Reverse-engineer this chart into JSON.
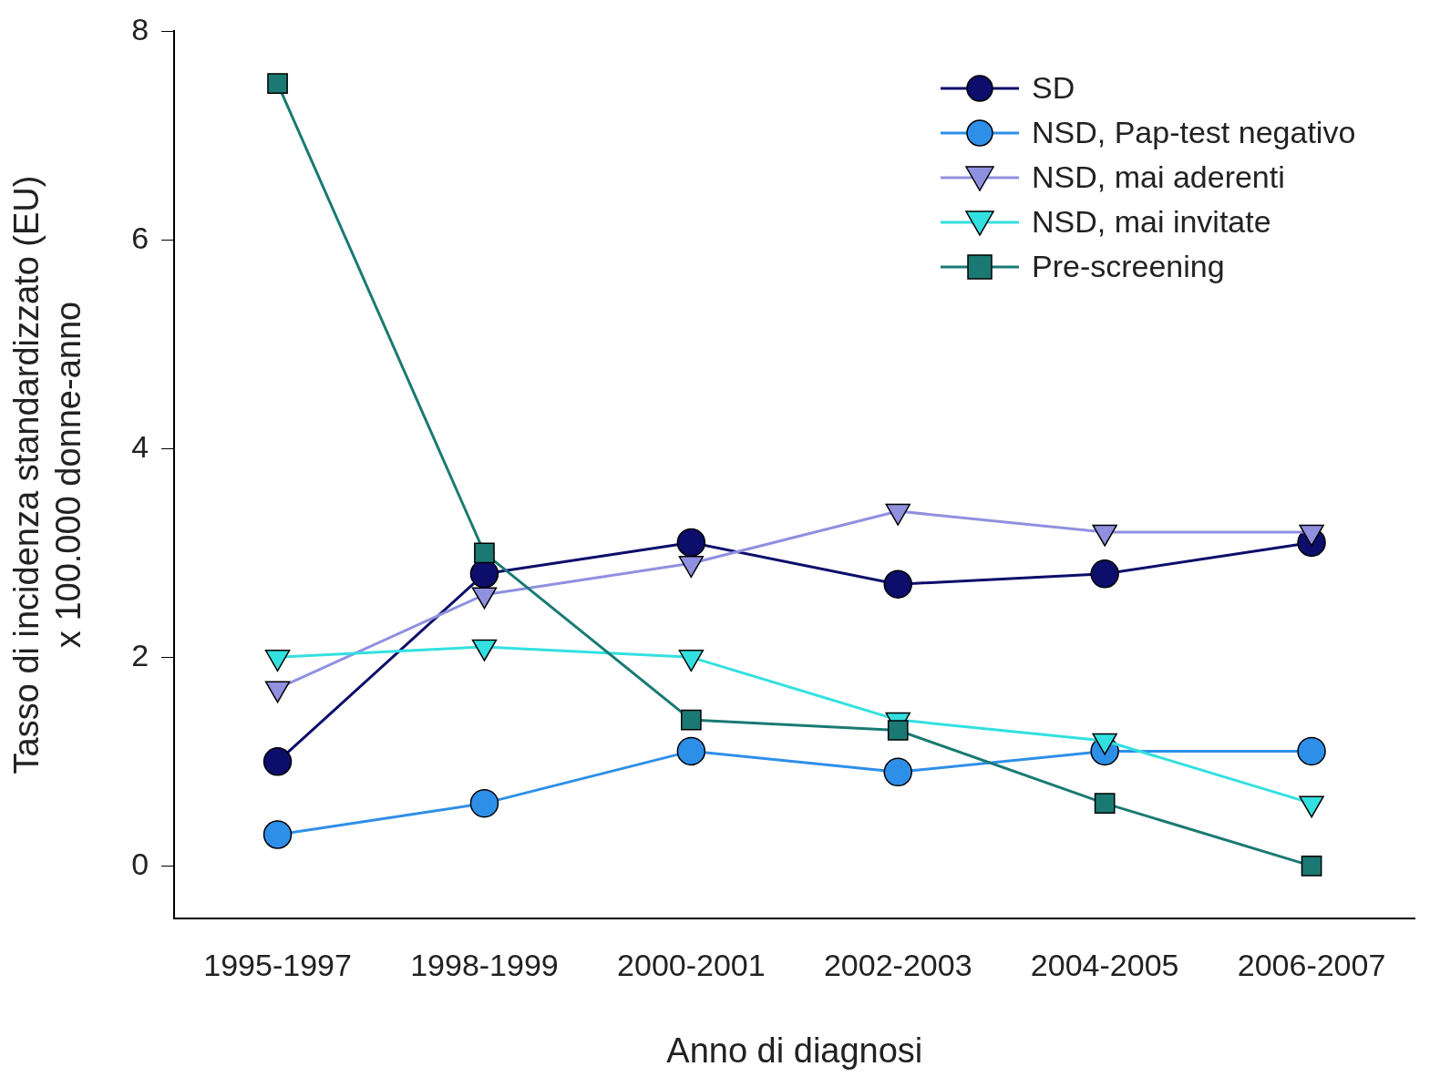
{
  "chart_data": {
    "type": "line",
    "xlabel": "Anno di diagnosi",
    "ylabel": "Tasso di incidenza standardizzato (EU)\nx 100.000 donne-anno",
    "categories": [
      "1995-1997",
      "1998-1999",
      "2000-2001",
      "2002-2003",
      "2004-2005",
      "2006-2007"
    ],
    "ylim": [
      -0.5,
      8
    ],
    "yticks": [
      0,
      2,
      4,
      6,
      8
    ],
    "grid": false,
    "legend": "top right",
    "series": [
      {
        "name": "SD",
        "color": "#0d0d6b",
        "marker": "circle",
        "values": [
          1.0,
          2.8,
          3.1,
          2.7,
          2.8,
          3.1
        ]
      },
      {
        "name": "NSD, Pap-test negativo",
        "color": "#2e8fe8",
        "marker": "circle",
        "values": [
          0.3,
          0.6,
          1.1,
          0.9,
          1.1,
          1.1
        ]
      },
      {
        "name": "NSD, mai aderenti",
        "color": "#9090e0",
        "marker": "triangle",
        "values": [
          1.7,
          2.6,
          2.9,
          3.4,
          3.2,
          3.2
        ]
      },
      {
        "name": "NSD, mai invitate",
        "color": "#33e0e0",
        "marker": "triangle",
        "values": [
          2.0,
          2.1,
          2.0,
          1.4,
          1.2,
          0.6
        ]
      },
      {
        "name": "Pre-screening",
        "color": "#1a7a73",
        "marker": "square",
        "values": [
          7.5,
          3.0,
          1.4,
          1.3,
          0.6,
          0.0
        ]
      }
    ]
  }
}
